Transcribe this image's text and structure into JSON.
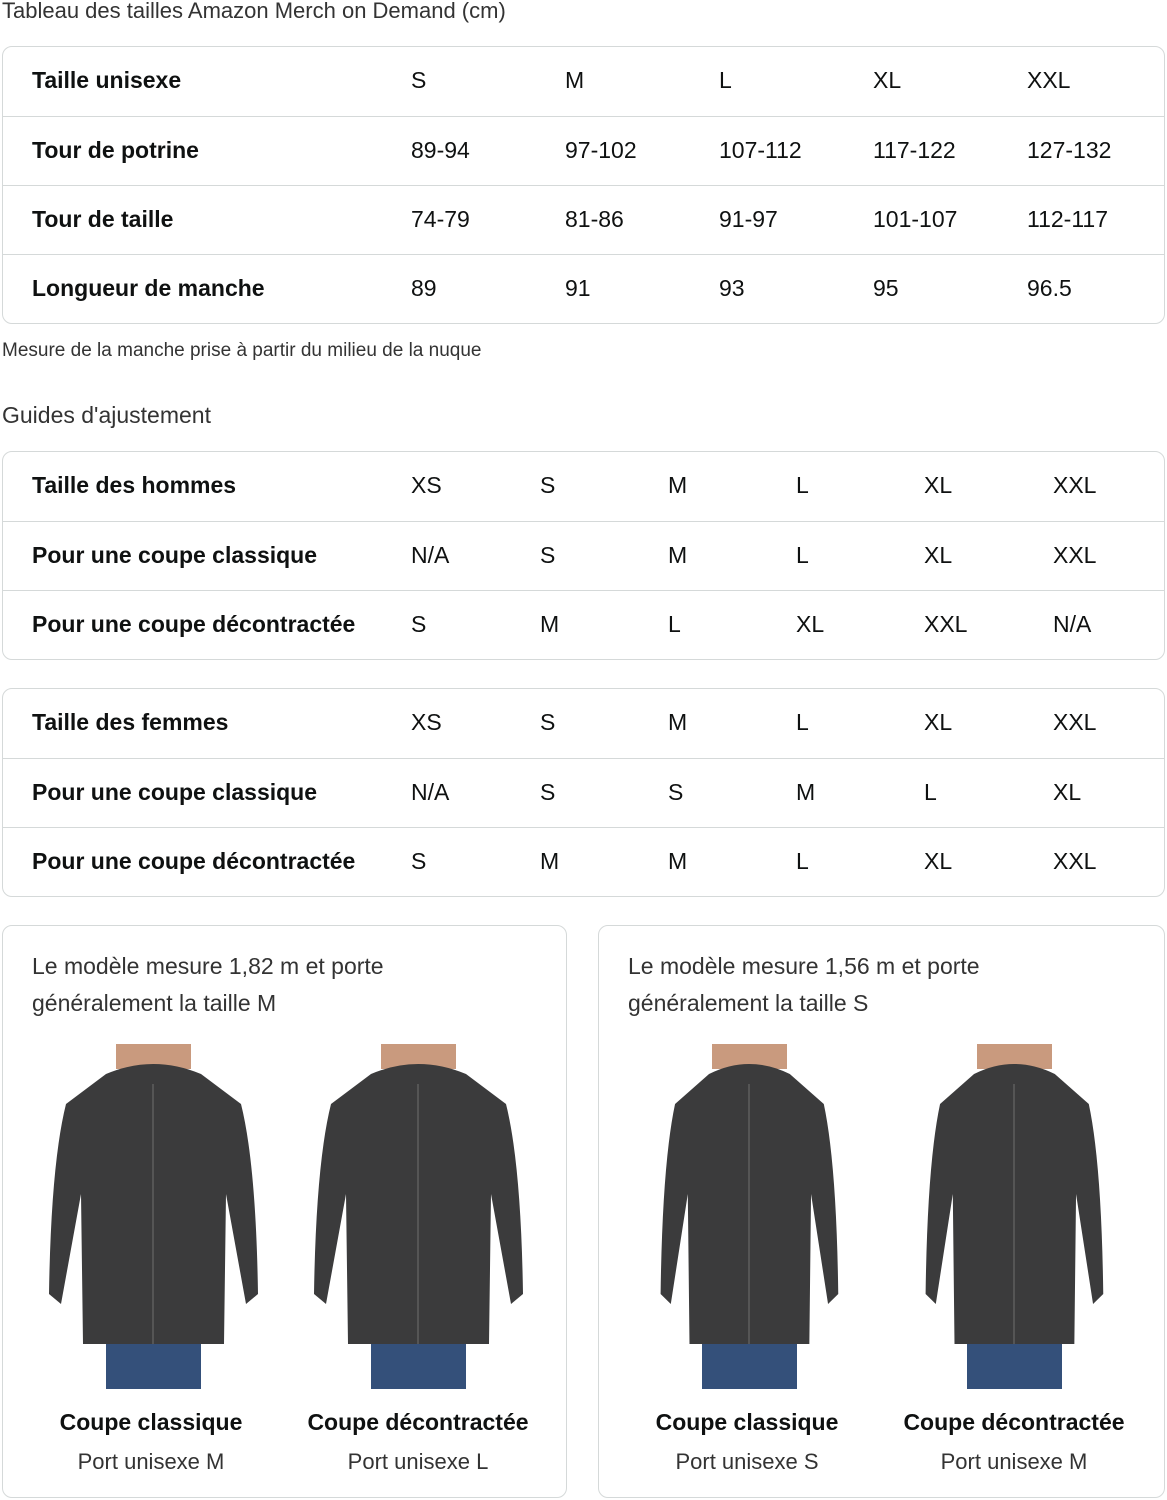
{
  "title": "Tableau des tailles Amazon Merch on Demand (cm)",
  "size_table": {
    "rows": [
      [
        "Taille unisexe",
        "S",
        "M",
        "L",
        "XL",
        "XXL"
      ],
      [
        "Tour de potrine",
        "89-94",
        "97-102",
        "107-112",
        "117-122",
        "127-132"
      ],
      [
        "Tour de taille",
        "74-79",
        "81-86",
        "91-97",
        "101-107",
        "112-117"
      ],
      [
        "Longueur de manche",
        "89",
        "91",
        "93",
        "95",
        "96.5"
      ]
    ]
  },
  "note": "Mesure de la manche prise à partir du milieu de la nuque",
  "fit_heading": "Guides d'ajustement",
  "men_table": {
    "rows": [
      [
        "Taille des hommes",
        "XS",
        "S",
        "M",
        "L",
        "XL",
        "XXL"
      ],
      [
        "Pour une coupe classique",
        "N/A",
        "S",
        "M",
        "L",
        "XL",
        "XXL"
      ],
      [
        "Pour une coupe décontractée",
        "S",
        "M",
        "L",
        "XL",
        "XXL",
        "N/A"
      ]
    ]
  },
  "women_table": {
    "rows": [
      [
        "Taille des femmes",
        "XS",
        "S",
        "M",
        "L",
        "XL",
        "XXL"
      ],
      [
        "Pour une coupe classique",
        "N/A",
        "S",
        "S",
        "M",
        "L",
        "XL"
      ],
      [
        "Pour une coupe décontractée",
        "S",
        "M",
        "M",
        "L",
        "XL",
        "XXL"
      ]
    ]
  },
  "cards": [
    {
      "text": "Le modèle mesure 1,82 m et porte généralement la taille M",
      "figures": [
        {
          "caption": "Coupe classique",
          "sub": "Port unisexe M"
        },
        {
          "caption": "Coupe décontractée",
          "sub": "Port unisexe L"
        }
      ]
    },
    {
      "text": "Le modèle mesure 1,56 m et porte généralement la taille S",
      "figures": [
        {
          "caption": "Coupe classique",
          "sub": "Port unisexe S"
        },
        {
          "caption": "Coupe décontractée",
          "sub": "Port unisexe M"
        }
      ]
    }
  ]
}
